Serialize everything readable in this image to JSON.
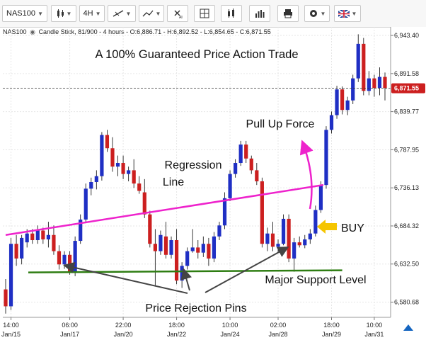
{
  "toolbar": {
    "symbol": "NAS100",
    "timeframe": "4H",
    "icons": [
      "bar-type-icon",
      "crosshair-icon",
      "trendline-icon",
      "delete-drawings-icon",
      "grid-icon",
      "candle-style-icon",
      "indicators-icon",
      "print-icon",
      "settings-icon",
      "language-flag-icon"
    ]
  },
  "infobar": {
    "symbol": "NAS100",
    "text": "Candle Stick, 81/900 - 4 hours - O:6,886.71 - H:6,892.52 - L:6,854.65 - C:6,871.55"
  },
  "price_axis": {
    "ticks": [
      "6,943.40",
      "6,891.58",
      "6,839.77",
      "6,787.95",
      "6,736.13",
      "6,684.32",
      "6,632.50",
      "6,580.68"
    ],
    "current_price": "6,871.55",
    "current_color": "#cc1f1f"
  },
  "time_axis": {
    "labels": [
      {
        "time": "14:00",
        "date": "Jan/15"
      },
      {
        "time": "06:00",
        "date": "Jan/17"
      },
      {
        "time": "22:00",
        "date": "Jan/20"
      },
      {
        "time": "18:00",
        "date": "Jan/22"
      },
      {
        "time": "10:00",
        "date": "Jan/24"
      },
      {
        "time": "02:00",
        "date": "Jan/28"
      },
      {
        "time": "18:00",
        "date": "Jan/29"
      },
      {
        "time": "10:00",
        "date": "Jan/31"
      }
    ]
  },
  "annotations": {
    "title": "A 100% Guaranteed Price Action Trade",
    "pull_up": "Pull Up Force",
    "regression_1": "Regression",
    "regression_2": "Line",
    "buy": "BUY",
    "support": "Major Support Level",
    "pins": "Price Rejection Pins"
  },
  "colors": {
    "up": "#1f2fc4",
    "down": "#cc1f1f",
    "regression": "#ee22cc",
    "support": "#2e7d12",
    "buy_arrow": "#f5c500",
    "pins_arrows": "#444444"
  },
  "chart_data": {
    "type": "candlestick",
    "symbol": "NAS100",
    "timeframe": "4 hours",
    "ylim": [
      6560,
      6955
    ],
    "candles": [
      [
        6598,
        6612,
        6565,
        6575
      ],
      [
        6575,
        6668,
        6570,
        6660
      ],
      [
        6660,
        6672,
        6630,
        6640
      ],
      [
        6640,
        6672,
        6632,
        6668
      ],
      [
        6662,
        6680,
        6655,
        6674
      ],
      [
        6674,
        6680,
        6660,
        6665
      ],
      [
        6665,
        6685,
        6660,
        6678
      ],
      [
        6678,
        6682,
        6660,
        6666
      ],
      [
        6666,
        6690,
        6655,
        6672
      ],
      [
        6672,
        6685,
        6645,
        6650
      ],
      [
        6650,
        6658,
        6625,
        6632
      ],
      [
        6632,
        6650,
        6626,
        6645
      ],
      [
        6645,
        6650,
        6618,
        6622
      ],
      [
        6622,
        6670,
        6616,
        6664
      ],
      [
        6664,
        6700,
        6660,
        6693
      ],
      [
        6693,
        6742,
        6688,
        6735
      ],
      [
        6735,
        6750,
        6726,
        6744
      ],
      [
        6744,
        6760,
        6734,
        6752
      ],
      [
        6752,
        6812,
        6746,
        6808
      ],
      [
        6808,
        6815,
        6785,
        6790
      ],
      [
        6790,
        6805,
        6758,
        6765
      ],
      [
        6765,
        6780,
        6752,
        6770
      ],
      [
        6770,
        6780,
        6748,
        6755
      ],
      [
        6755,
        6765,
        6745,
        6760
      ],
      [
        6760,
        6775,
        6736,
        6742
      ],
      [
        6742,
        6752,
        6728,
        6732
      ],
      [
        6730,
        6748,
        6695,
        6700
      ],
      [
        6700,
        6705,
        6655,
        6660
      ],
      [
        6660,
        6680,
        6602,
        6650
      ],
      [
        6650,
        6678,
        6645,
        6672
      ],
      [
        6670,
        6690,
        6640,
        6645
      ],
      [
        6645,
        6670,
        6640,
        6665
      ],
      [
        6665,
        6680,
        6605,
        6610
      ],
      [
        6610,
        6635,
        6600,
        6630
      ],
      [
        6630,
        6655,
        6625,
        6650
      ],
      [
        6650,
        6680,
        6648,
        6655
      ],
      [
        6655,
        6665,
        6640,
        6648
      ],
      [
        6648,
        6670,
        6642,
        6660
      ],
      [
        6660,
        6668,
        6630,
        6640
      ],
      [
        6640,
        6676,
        6635,
        6670
      ],
      [
        6670,
        6690,
        6665,
        6685
      ],
      [
        6685,
        6730,
        6680,
        6722
      ],
      [
        6722,
        6760,
        6718,
        6755
      ],
      [
        6755,
        6775,
        6750,
        6770
      ],
      [
        6770,
        6800,
        6766,
        6795
      ],
      [
        6795,
        6800,
        6770,
        6776
      ],
      [
        6776,
        6780,
        6755,
        6760
      ],
      [
        6760,
        6770,
        6740,
        6745
      ],
      [
        6745,
        6750,
        6655,
        6660
      ],
      [
        6660,
        6682,
        6650,
        6674
      ],
      [
        6674,
        6690,
        6650,
        6656
      ],
      [
        6656,
        6666,
        6648,
        6660
      ],
      [
        6660,
        6700,
        6658,
        6694
      ],
      [
        6694,
        6700,
        6635,
        6640
      ],
      [
        6640,
        6668,
        6622,
        6662
      ],
      [
        6662,
        6670,
        6655,
        6658
      ],
      [
        6658,
        6672,
        6654,
        6666
      ],
      [
        6666,
        6680,
        6660,
        6674
      ],
      [
        6674,
        6712,
        6670,
        6706
      ],
      [
        6706,
        6745,
        6702,
        6740
      ],
      [
        6740,
        6820,
        6735,
        6815
      ],
      [
        6815,
        6840,
        6810,
        6835
      ],
      [
        6835,
        6875,
        6830,
        6870
      ],
      [
        6870,
        6874,
        6836,
        6842
      ],
      [
        6842,
        6860,
        6835,
        6855
      ],
      [
        6855,
        6890,
        6850,
        6885
      ],
      [
        6885,
        6945,
        6880,
        6932
      ],
      [
        6932,
        6940,
        6862,
        6868
      ],
      [
        6868,
        6895,
        6862,
        6885
      ],
      [
        6885,
        6890,
        6860,
        6872
      ],
      [
        6872,
        6900,
        6862,
        6887
      ],
      [
        6887,
        6893,
        6855,
        6872
      ]
    ],
    "regression_line": {
      "from": 6672,
      "to": 6740
    },
    "support_level": 6624
  }
}
